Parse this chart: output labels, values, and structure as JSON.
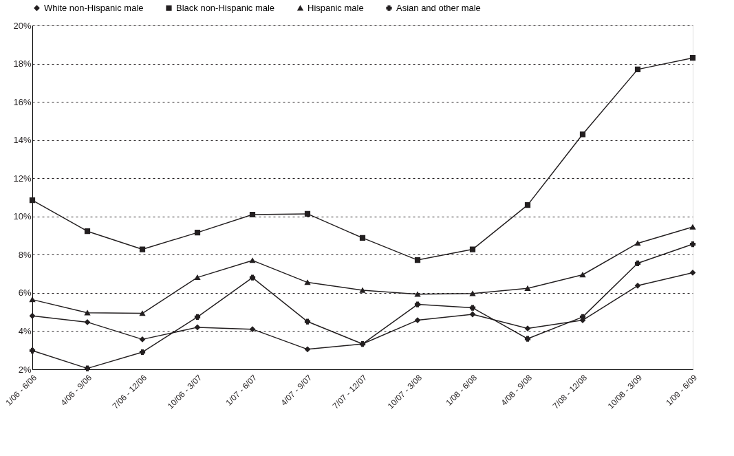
{
  "chart_data": {
    "type": "line",
    "categories": [
      "1/06 - 6/06",
      "4/06 - 9/06",
      "7/06 - 12/06",
      "10/06 - 3/07",
      "1/07 - 6/07",
      "4/07 - 9/07",
      "7/07 - 12/07",
      "10/07 - 3/08",
      "1/08 - 6/08",
      "4/08 - 9/08",
      "7/08 - 12/08",
      "10/08 - 3/09",
      "1/09 - 6/09"
    ],
    "series": [
      {
        "name": "White non-Hispanic male",
        "color": "#231f20",
        "marker": "diamond",
        "values": [
          4.8,
          4.47,
          3.57,
          4.2,
          4.1,
          3.05,
          3.33,
          4.57,
          4.88,
          4.14,
          4.57,
          6.38,
          7.06
        ]
      },
      {
        "name": "Black non-Hispanic male",
        "color": "#231f20",
        "marker": "square",
        "values": [
          10.85,
          9.23,
          8.28,
          9.16,
          10.1,
          10.14,
          8.88,
          7.72,
          8.28,
          10.6,
          14.3,
          17.7,
          18.3
        ]
      },
      {
        "name": "Hispanic male",
        "color": "#231f20",
        "marker": "triangle",
        "values": [
          5.65,
          4.96,
          4.93,
          6.81,
          7.7,
          6.55,
          6.14,
          5.93,
          5.97,
          6.24,
          6.95,
          8.6,
          9.45
        ]
      },
      {
        "name": "Asian and other male",
        "color": "#231f20",
        "marker": "cross",
        "values": [
          2.98,
          2.05,
          2.9,
          4.74,
          6.8,
          4.5,
          3.33,
          5.4,
          5.22,
          3.6,
          4.74,
          7.55,
          8.55
        ]
      }
    ],
    "ylim": [
      2,
      20
    ],
    "yticks": [
      {
        "value": 2,
        "label": "2%"
      },
      {
        "value": 4,
        "label": "4%"
      },
      {
        "value": 6,
        "label": "6%"
      },
      {
        "value": 8,
        "label": "8%"
      },
      {
        "value": 10,
        "label": "10%"
      },
      {
        "value": 12,
        "label": "12%"
      },
      {
        "value": 14,
        "label": "14%"
      },
      {
        "value": 16,
        "label": "16%"
      },
      {
        "value": 18,
        "label": "18%"
      },
      {
        "value": 20,
        "label": "20%"
      }
    ],
    "grid": "y",
    "line_style": "solid",
    "legend": "top"
  }
}
